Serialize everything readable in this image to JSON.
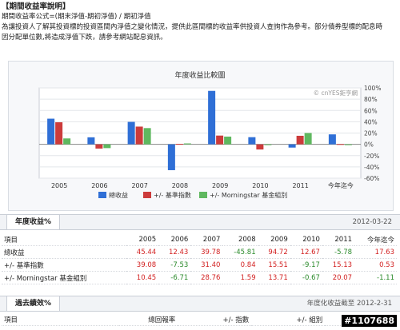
{
  "intro": {
    "title": "【期間收益率說明】",
    "lines": [
      "期間收益率公式=(期末淨值-期初淨值) / 期初淨值",
      "為讓投資人了解其投資標的投資區間內淨值之變化情況，提供此區間標的收益率供投資人查詢作為參考。部分債券型標的配息時",
      "因分配單位數,將造成淨值下跌，請參考網站配息資訊。"
    ]
  },
  "chart_data": {
    "type": "bar",
    "title": "年度收益比較圖",
    "watermark": "© cnYES鉅亨網",
    "categories": [
      "2005",
      "2006",
      "2007",
      "2008",
      "2009",
      "2010",
      "2011",
      "今年迄今"
    ],
    "yticks": [
      "100%",
      "80%",
      "60%",
      "40%",
      "20%",
      "0%",
      "-20%",
      "-40%",
      "-60%"
    ],
    "ylim": [
      -60,
      100
    ],
    "grid": true,
    "series": [
      {
        "name": "總收益",
        "color": "#2f6fd6",
        "values": [
          45.44,
          12.43,
          39.78,
          -45.81,
          94.72,
          12.67,
          -5.78,
          17.63
        ]
      },
      {
        "name": "+/- 基準指數",
        "color": "#cc3b3b",
        "values": [
          39.08,
          -7.53,
          31.4,
          0.84,
          15.51,
          -9.17,
          15.13,
          0.53
        ]
      },
      {
        "name": "+/- Morningstar 基金組別",
        "color": "#5fb85f",
        "values": [
          10.45,
          -6.71,
          28.76,
          1.59,
          13.71,
          -0.67,
          20.07,
          -1.11
        ]
      }
    ],
    "legend": "bottom"
  },
  "annual": {
    "tab_label": "年度收益%",
    "date": "2012-03-22",
    "header_label": "項目",
    "columns": [
      "2005",
      "2006",
      "2007",
      "2008",
      "2009",
      "2010",
      "2011",
      "今年迄今"
    ],
    "rows": [
      {
        "label": "總收益",
        "values": [
          "45.44",
          "12.43",
          "39.78",
          "-45.81",
          "94.72",
          "12.67",
          "-5.78",
          "17.63"
        ]
      },
      {
        "label": "+/- 基準指數",
        "values": [
          "39.08",
          "-7.53",
          "31.40",
          "0.84",
          "15.51",
          "-9.17",
          "15.13",
          "0.53"
        ]
      },
      {
        "label": "+/- Morningstar 基金組別",
        "values": [
          "10.45",
          "-6.71",
          "28.76",
          "1.59",
          "13.71",
          "-0.67",
          "20.07",
          "-1.11"
        ]
      }
    ]
  },
  "past": {
    "tab_label": "過去績效%",
    "date_label": "年度化收益截至 2012-2-31",
    "header_label": "項目",
    "columns": [
      "總回報率",
      "+/- 指數",
      "+/- 組別"
    ]
  },
  "watermark": "#1107688"
}
